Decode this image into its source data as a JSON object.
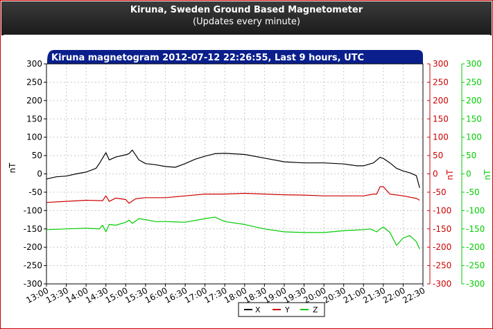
{
  "header": {
    "title": "Kiruna, Sweden Ground Based Magnetometer",
    "subtitle": "(Updates every minute)"
  },
  "chart_data": {
    "type": "line",
    "title": "Kiruna magnetogram 2012-07-12 22:26:55, Last 9 hours, UTC",
    "ylabel": "nT",
    "y2label": "nT",
    "ylim": [
      -300,
      300
    ],
    "y_ticks": [
      "300",
      "250",
      "200",
      "150",
      "100",
      "50",
      "0",
      "-50",
      "-100",
      "-150",
      "-200",
      "-250",
      "-300"
    ],
    "x_ticks": [
      "13:00",
      "13:30",
      "14:00",
      "14:30",
      "15:00",
      "15:30",
      "16:00",
      "16:30",
      "17:00",
      "17:30",
      "18:00",
      "18:30",
      "19:00",
      "19:30",
      "20:00",
      "20:30",
      "21:00",
      "21:30",
      "22:00",
      "22:30"
    ],
    "grid": true,
    "legend_position": "bottom-right",
    "series": [
      {
        "name": "X",
        "color": "#000000",
        "axis": "left",
        "x": [
          "13:00",
          "13:15",
          "13:30",
          "13:45",
          "14:00",
          "14:15",
          "14:20",
          "14:30",
          "14:35",
          "14:45",
          "15:00",
          "15:05",
          "15:10",
          "15:20",
          "15:30",
          "15:45",
          "16:00",
          "16:15",
          "16:30",
          "16:45",
          "17:00",
          "17:15",
          "17:30",
          "18:00",
          "18:30",
          "19:00",
          "19:30",
          "20:00",
          "20:30",
          "20:50",
          "21:00",
          "21:15",
          "21:25",
          "21:30",
          "21:40",
          "21:50",
          "22:00",
          "22:10",
          "22:20",
          "22:25"
        ],
        "values": [
          -14,
          -8,
          -6,
          0,
          5,
          15,
          28,
          58,
          38,
          46,
          52,
          55,
          65,
          38,
          28,
          25,
          20,
          18,
          28,
          40,
          48,
          55,
          56,
          53,
          43,
          33,
          30,
          30,
          27,
          22,
          22,
          30,
          45,
          42,
          30,
          15,
          8,
          3,
          -5,
          -38
        ]
      },
      {
        "name": "Y",
        "color": "#cc0000",
        "axis": "right",
        "x": [
          "13:00",
          "13:30",
          "14:00",
          "14:25",
          "14:30",
          "14:35",
          "14:45",
          "15:00",
          "15:05",
          "15:15",
          "15:30",
          "16:00",
          "16:30",
          "17:00",
          "17:30",
          "18:00",
          "18:30",
          "19:00",
          "19:30",
          "20:00",
          "20:30",
          "21:00",
          "21:15",
          "21:20",
          "21:25",
          "21:30",
          "21:35",
          "21:40",
          "22:00",
          "22:20",
          "22:25"
        ],
        "values": [
          -78,
          -75,
          -72,
          -73,
          -60,
          -75,
          -66,
          -70,
          -80,
          -68,
          -65,
          -65,
          -60,
          -55,
          -55,
          -53,
          -55,
          -57,
          -58,
          -60,
          -60,
          -60,
          -55,
          -55,
          -35,
          -35,
          -45,
          -55,
          -60,
          -67,
          -72
        ]
      },
      {
        "name": "Z",
        "color": "#00cc00",
        "axis": "right",
        "x": [
          "13:00",
          "13:30",
          "14:00",
          "14:20",
          "14:25",
          "14:30",
          "14:35",
          "14:45",
          "15:00",
          "15:05",
          "15:10",
          "15:20",
          "15:30",
          "15:45",
          "16:00",
          "16:30",
          "17:00",
          "17:15",
          "17:30",
          "18:00",
          "18:30",
          "19:00",
          "19:30",
          "20:00",
          "20:30",
          "21:00",
          "21:10",
          "21:20",
          "21:25",
          "21:30",
          "21:40",
          "21:50",
          "22:00",
          "22:10",
          "22:20",
          "22:25"
        ],
        "values": [
          -152,
          -150,
          -148,
          -150,
          -140,
          -158,
          -138,
          -140,
          -132,
          -126,
          -135,
          -122,
          -125,
          -130,
          -130,
          -132,
          -122,
          -118,
          -130,
          -138,
          -150,
          -158,
          -160,
          -160,
          -155,
          -152,
          -150,
          -158,
          -150,
          -145,
          -160,
          -195,
          -175,
          -168,
          -185,
          -205
        ]
      }
    ]
  }
}
